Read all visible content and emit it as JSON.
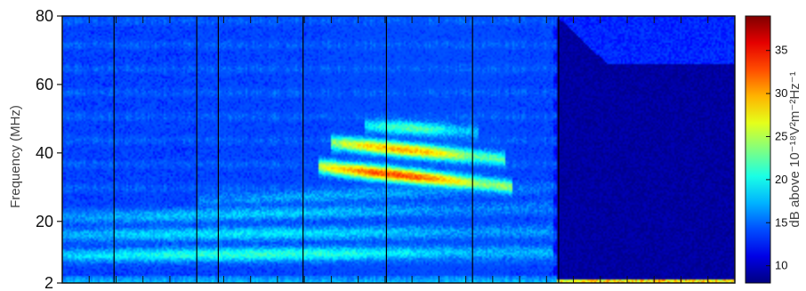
{
  "chart_data": {
    "type": "heatmap",
    "title": "",
    "ylabel": "Frequency (MHz)",
    "ylim": [
      2,
      80
    ],
    "y_ticks": [
      2,
      20,
      40,
      60,
      80
    ],
    "colorbar": {
      "label": "dB above 10⁻¹⁸V²m⁻²Hz⁻¹",
      "range": [
        8,
        39
      ],
      "ticks": [
        10,
        15,
        20,
        25,
        30,
        35
      ],
      "colormap": "jet"
    },
    "x_range": [
      0,
      1
    ],
    "x_divisions": 25,
    "vertical_markers": [
      0.077,
      0.2,
      0.232,
      0.358,
      0.482,
      0.61,
      0.738
    ],
    "background_level": 13,
    "cutoff": {
      "x_start": 0.735,
      "x_mid": 0.81,
      "upper_mhz": 66,
      "level_below": 9,
      "level_above": 13
    },
    "features": [
      {
        "name": "intense band lower",
        "x": [
          0.38,
          0.67
        ],
        "y_start": 36,
        "y_end": 30,
        "level": 33
      },
      {
        "name": "intense band upper",
        "x": [
          0.4,
          0.66
        ],
        "y_start": 43,
        "y_end": 38,
        "level": 30
      },
      {
        "name": "upper band",
        "x": [
          0.45,
          0.62
        ],
        "y_start": 48,
        "y_end": 46,
        "level": 22
      },
      {
        "name": "harmonic band 1",
        "x": [
          0.0,
          0.73
        ],
        "y_start": 10,
        "y_end": 11,
        "level": 21
      },
      {
        "name": "harmonic band 2",
        "x": [
          0.0,
          0.73
        ],
        "y_start": 16,
        "y_end": 17,
        "level": 19
      },
      {
        "name": "harmonic band 3",
        "x": [
          0.0,
          0.73
        ],
        "y_start": 21,
        "y_end": 24,
        "level": 18
      },
      {
        "name": "harmonic band 4",
        "x": [
          0.2,
          0.73
        ],
        "y_start": 26,
        "y_end": 30,
        "level": 17
      }
    ]
  }
}
